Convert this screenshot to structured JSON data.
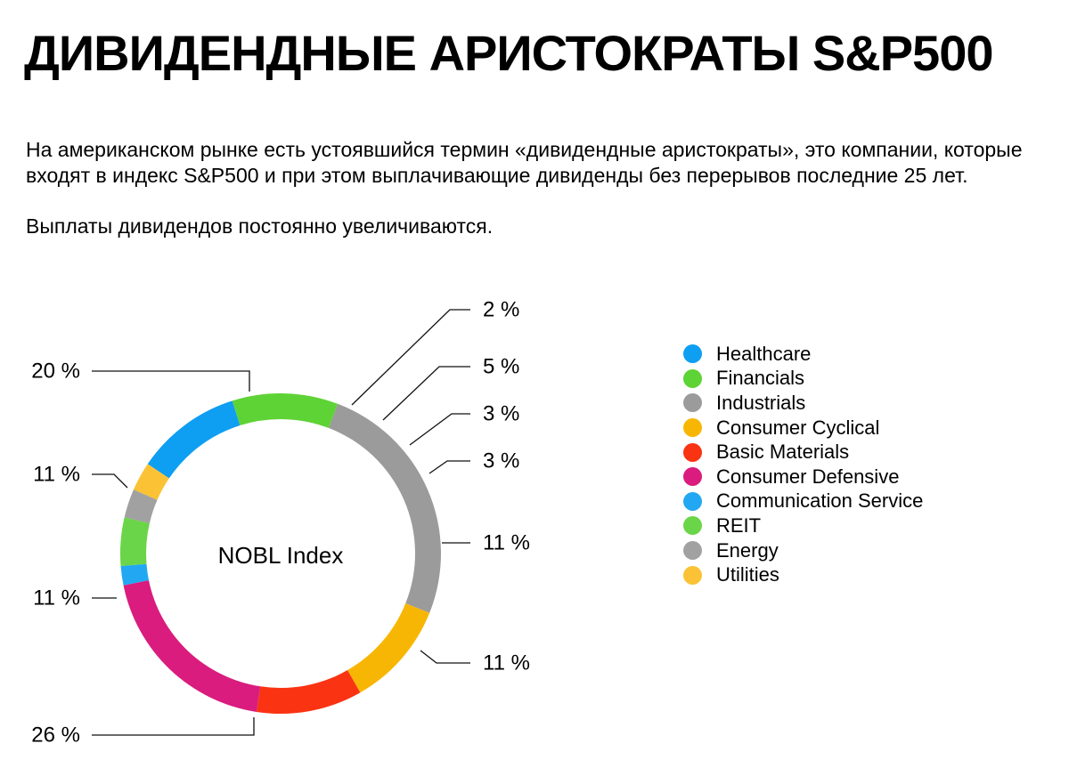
{
  "title": "ДИВИДЕНДНЫЕ АРИСТОКРАТЫ S&P500",
  "intro": {
    "paragraph_1": "На американском рынке есть устоявшийся термин «дивидендные аристократы», это компании, которые входят в индекс S&P500 и при этом выплачивающие дивиденды без перерывов последние 25 лет.",
    "paragraph_2": "Выплаты дивидендов постоянно увеличиваются."
  },
  "chart_data": {
    "type": "pie",
    "variant": "donut",
    "center_label": "NOBL Index",
    "unit": "%",
    "legend_position": "right",
    "slices": [
      {
        "name": "Healthcare",
        "value": 11,
        "color": "#0E9EF2"
      },
      {
        "name": "Financials",
        "value": 11,
        "color": "#5ED335"
      },
      {
        "name": "Industrials",
        "value": 26,
        "color": "#9B9B9B"
      },
      {
        "name": "Consumer Cyclical",
        "value": 11,
        "color": "#F8B604"
      },
      {
        "name": "Basic Materials",
        "value": 11,
        "color": "#FA3313"
      },
      {
        "name": "Consumer Defensive",
        "value": 20,
        "color": "#D91C7E"
      },
      {
        "name": "Communication Service",
        "value": 2,
        "color": "#22A8F2"
      },
      {
        "name": "REIT",
        "value": 5,
        "color": "#6AD548"
      },
      {
        "name": "Energy",
        "value": 3,
        "color": "#A1A1A1"
      },
      {
        "name": "Utilities",
        "value": 3,
        "color": "#FBC235"
      }
    ]
  }
}
